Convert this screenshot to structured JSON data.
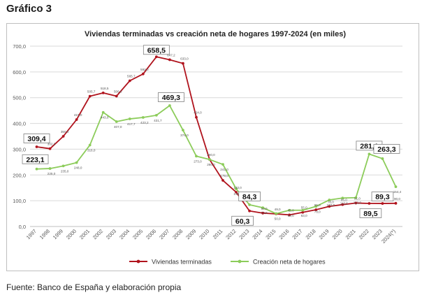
{
  "heading": "Gráfico 3",
  "source": "Fuente: Banco de España y elaboración propia",
  "colors": {
    "series1": "#b0131d",
    "series2": "#8ccc5a",
    "grid": "#d9d9d9",
    "text": "#595959"
  },
  "chart_data": {
    "type": "line",
    "title": "Viviendas terminadas vs creación neta de hogares 1997-2024 (en miles)",
    "xlabel": "",
    "ylabel": "",
    "ylim": [
      0,
      700
    ],
    "yticks": [
      "0,0",
      "100,0",
      "200,0",
      "300,0",
      "400,0",
      "500,0",
      "600,0",
      "700,0"
    ],
    "grid": true,
    "legend_position": "bottom",
    "categories": [
      "1997",
      "1998",
      "1999",
      "2000",
      "2001",
      "2002",
      "2003",
      "2004",
      "2005",
      "2006",
      "2007",
      "2008",
      "2009",
      "2010",
      "2011",
      "2012",
      "2013",
      "2014",
      "2015",
      "2016",
      "2017",
      "2018",
      "2019",
      "2020",
      "2021",
      "2022",
      "2023",
      "2024(*)"
    ],
    "series": [
      {
        "name": "Viviendas terminadas",
        "values": [
          309.4,
          302.0,
          350.0,
          415.0,
          505.7,
          518.5,
          506.0,
          565.7,
          592.0,
          658.5,
          647.2,
          633.0,
          424.0,
          260.0,
          179.0,
          133.0,
          60.3,
          52.0,
          49.0,
          45.0,
          55.0,
          65.0,
          78.0,
          85.0,
          91.0,
          89.5,
          89.3,
          90.0
        ],
        "labels": [
          "309,4",
          "302,0",
          "350,0",
          "415,0",
          "505,7",
          "518,5",
          "506,0",
          "565,7",
          "592,0",
          "658,5",
          "647,2",
          "633,0",
          "424,0",
          "260,0",
          "179,0",
          "133,0",
          "60,3",
          "52,0",
          "49,0",
          "45,0",
          "55,0",
          "65,0",
          "78,0",
          "85,0",
          "91,0",
          "89,5",
          "89,3",
          "90,0"
        ],
        "highlight": [
          0,
          9,
          16,
          25,
          26
        ]
      },
      {
        "name": "Creación neta de hogares",
        "values": [
          223.1,
          225.0,
          235.0,
          248.0,
          316.0,
          443.0,
          407.0,
          417.7,
          423.2,
          431.7,
          469.3,
          374.0,
          273.0,
          260.0,
          241.0,
          146.0,
          84.3,
          73.0,
          50.0,
          63.0,
          63.0,
          78.0,
          103.0,
          110.5,
          112.0,
          281.1,
          263.3,
          154.4
        ],
        "labels": [
          "223,1",
          "225,0",
          "235,0",
          "248,0",
          "316,0",
          "443,0",
          "407,0",
          "417,7",
          "423,2",
          "431,7",
          "469,3",
          "374,0",
          "273,0",
          "260,0",
          "241,0",
          "146,0",
          "84,3",
          "73,0",
          "50,0",
          "63,0",
          "63,0",
          "78,0",
          "103,0",
          "110,5",
          "112,0",
          "281,1",
          "263,3",
          "154,4"
        ],
        "highlight": [
          0,
          10,
          16,
          25,
          26
        ]
      }
    ]
  }
}
